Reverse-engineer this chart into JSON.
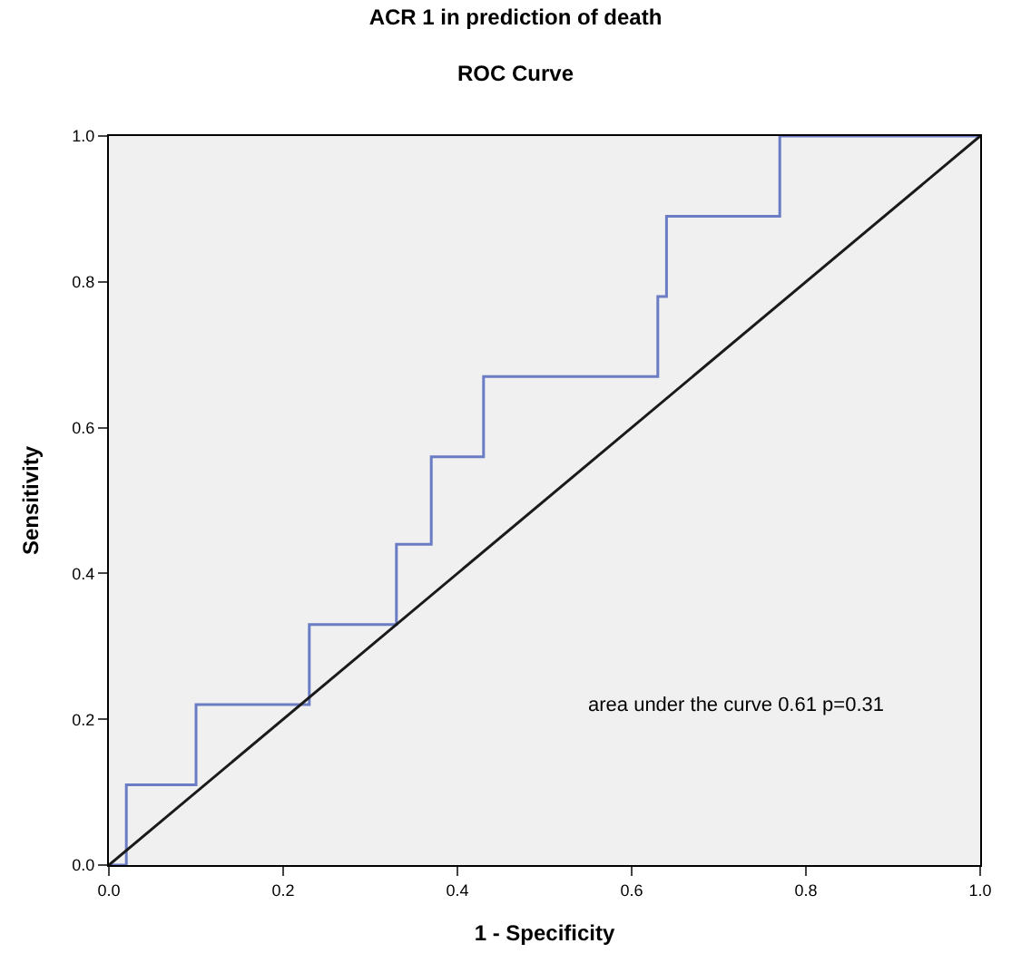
{
  "chart_data": {
    "type": "line",
    "title": "ACR 1 in prediction of death",
    "subtitle": "ROC Curve",
    "xlabel": "1 - Specificity",
    "ylabel": "Sensitivity",
    "series": [
      {
        "color": "#6a7cc4",
        "x": [
          0,
          0.02,
          0.02,
          0.1,
          0.1,
          0.23,
          0.23,
          0.33,
          0.33,
          0.37,
          0.37,
          0.43,
          0.43,
          0.63,
          0.63,
          0.64,
          0.64,
          0.77,
          0.77,
          1.0
        ],
        "values": [
          0,
          0,
          0.11,
          0.11,
          0.22,
          0.22,
          0.33,
          0.33,
          0.44,
          0.44,
          0.56,
          0.56,
          0.67,
          0.67,
          0.78,
          0.78,
          0.89,
          0.89,
          1.0,
          1.0
        ]
      },
      {
        "color": "#1a1a1a",
        "x": [
          0,
          1
        ],
        "values": [
          0,
          1
        ]
      }
    ],
    "xlim": [
      0,
      1
    ],
    "ylim": [
      0,
      1
    ],
    "xticks": [
      {
        "value": 0,
        "label": "0.0"
      },
      {
        "value": 0.2,
        "label": "0.2"
      },
      {
        "value": 0.4,
        "label": "0.4"
      },
      {
        "value": 0.6,
        "label": "0.6"
      },
      {
        "value": 0.8,
        "label": "0.8"
      },
      {
        "value": 1,
        "label": "1.0"
      }
    ],
    "yticks": [
      {
        "value": 0,
        "label": "0.0"
      },
      {
        "value": 0.2,
        "label": "0.2"
      },
      {
        "value": 0.4,
        "label": "0.4"
      },
      {
        "value": 0.6,
        "label": "0.6"
      },
      {
        "value": 0.8,
        "label": "0.8"
      },
      {
        "value": 1,
        "label": "1.0"
      }
    ],
    "annotations": [
      "area under the curve 0.61 p=0.31"
    ],
    "grid": false,
    "marker": "none",
    "line_style": "solid"
  }
}
